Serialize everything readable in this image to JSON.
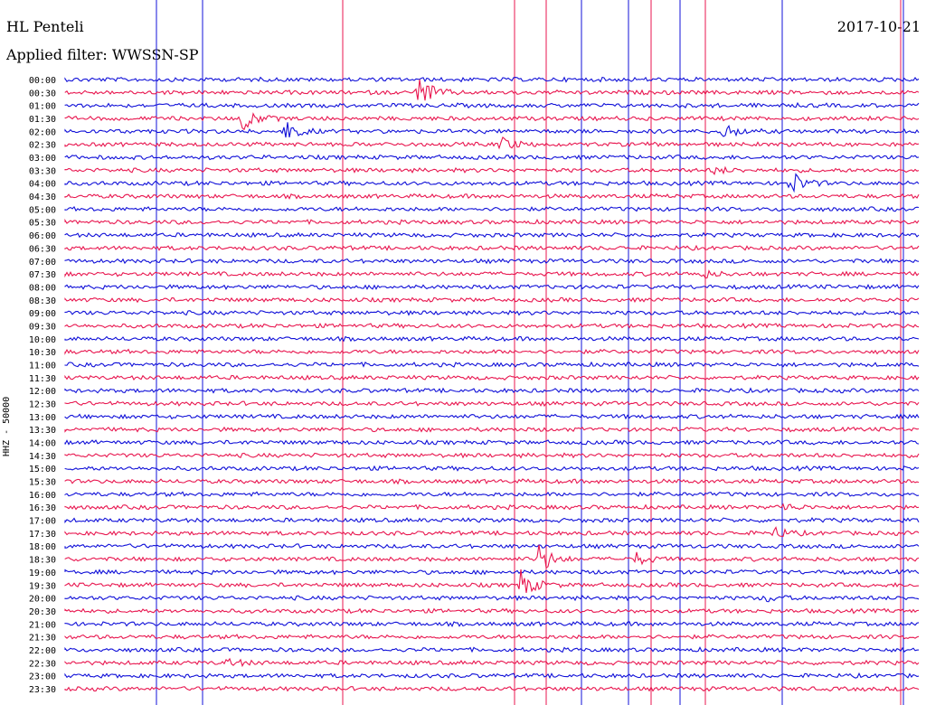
{
  "header": {
    "station": "HL Penteli",
    "filter_label": "Applied filter:",
    "filter_value": "WWSSN-SP",
    "date": "2017-10-21"
  },
  "chart_data": {
    "type": "line",
    "title": "HL Penteli",
    "ylabel": "HHZ - 50000",
    "colors": {
      "trace_a": "#1010d8",
      "trace_b": "#e8164f",
      "marker_lines": "mixed"
    },
    "row_labels": [
      "00:00",
      "00:30",
      "01:00",
      "01:30",
      "02:00",
      "02:30",
      "03:00",
      "03:30",
      "04:00",
      "04:30",
      "05:00",
      "05:30",
      "06:00",
      "06:30",
      "07:00",
      "07:30",
      "08:00",
      "08:30",
      "09:00",
      "09:30",
      "10:00",
      "10:30",
      "11:00",
      "11:30",
      "12:00",
      "12:30",
      "13:00",
      "13:30",
      "14:00",
      "14:30",
      "15:00",
      "15:30",
      "16:00",
      "16:30",
      "17:00",
      "17:30",
      "18:00",
      "18:30",
      "19:00",
      "19:30",
      "20:00",
      "20:30",
      "21:00",
      "21:30",
      "22:00",
      "22:30",
      "23:00",
      "23:30"
    ],
    "events": [
      {
        "row": "00:30",
        "minute": 12.4,
        "amplitude": 1.0
      },
      {
        "row": "01:30",
        "minute": 6.2,
        "amplitude": 0.7
      },
      {
        "row": "02:00",
        "minute": 7.7,
        "amplitude": 0.55
      },
      {
        "row": "02:30",
        "minute": 15.3,
        "amplitude": 0.4
      },
      {
        "row": "02:00",
        "minute": 23.1,
        "amplitude": 0.45
      },
      {
        "row": "03:30",
        "minute": 22.8,
        "amplitude": 0.2
      },
      {
        "row": "04:00",
        "minute": 25.5,
        "amplitude": 0.65
      },
      {
        "row": "07:30",
        "minute": 22.3,
        "amplitude": 0.25
      },
      {
        "row": "16:30",
        "minute": 25.1,
        "amplitude": 0.25
      },
      {
        "row": "17:30",
        "minute": 24.9,
        "amplitude": 0.3
      },
      {
        "row": "18:30",
        "minute": 16.6,
        "amplitude": 0.9
      },
      {
        "row": "18:30",
        "minute": 20.0,
        "amplitude": 0.35
      },
      {
        "row": "19:30",
        "minute": 16.0,
        "amplitude": 0.75
      },
      {
        "row": "20:00",
        "minute": 24.6,
        "amplitude": 0.2
      },
      {
        "row": "22:30",
        "minute": 5.7,
        "amplitude": 0.25
      }
    ]
  }
}
